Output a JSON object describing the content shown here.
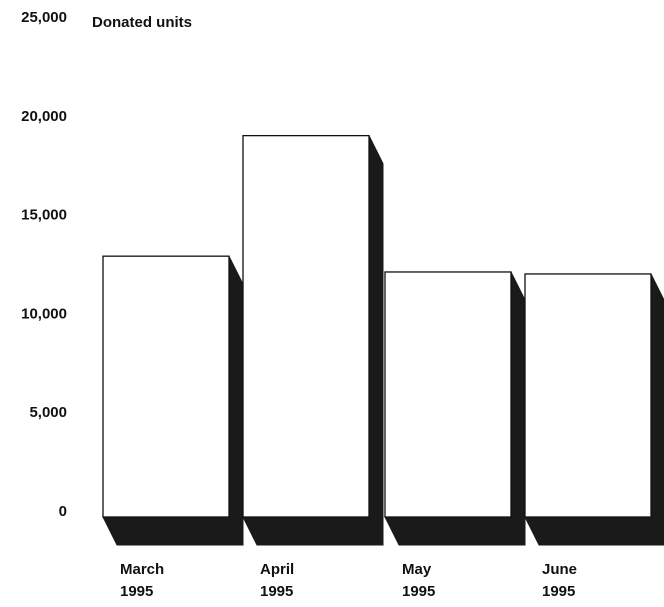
{
  "chart_data": {
    "type": "bar",
    "title": "Donated units",
    "ylabel": "",
    "xlabel": "",
    "ylim": [
      0,
      25000
    ],
    "yticks": [
      "0",
      "5,000",
      "10,000",
      "15,000",
      "20,000",
      "25,000"
    ],
    "categories": [
      {
        "line1": "March",
        "line2": "1995"
      },
      {
        "line1": "April",
        "line2": "1995"
      },
      {
        "line1": "May",
        "line2": "1995"
      },
      {
        "line1": "June",
        "line2": "1995"
      }
    ],
    "values": [
      13200,
      19300,
      12400,
      12300
    ],
    "grid": false,
    "style": "3d",
    "colors": {
      "bar_face": "#ffffff",
      "bar_shadow": "#1a1a1a",
      "outline": "#111111",
      "text": "#111111"
    }
  }
}
